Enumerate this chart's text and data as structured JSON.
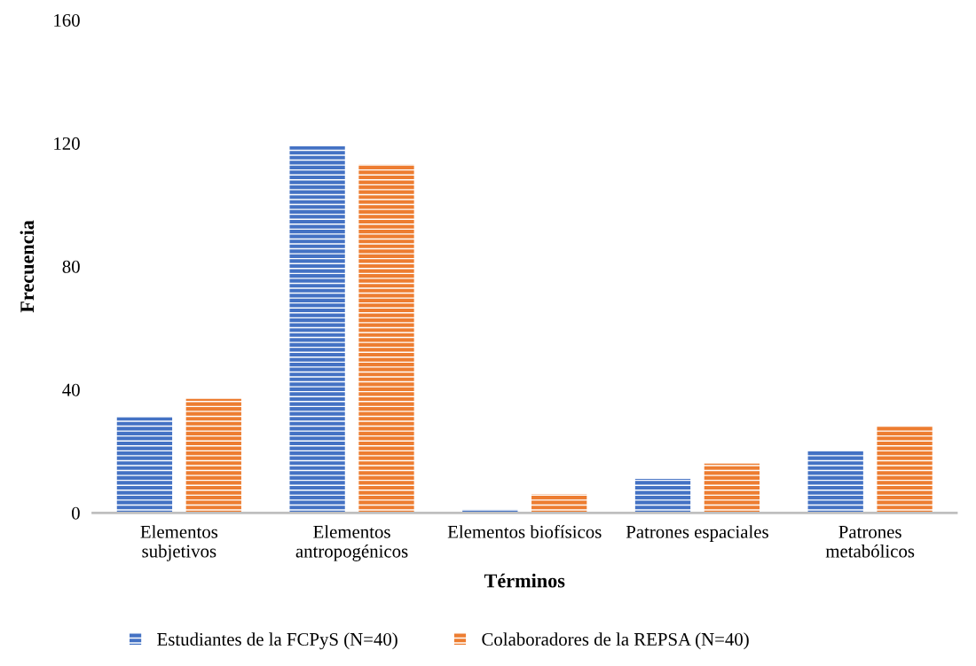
{
  "chart_data": {
    "type": "bar",
    "xlabel": "Términos",
    "ylabel": "Frecuencia",
    "categories": [
      "Elementos\nsubjetivos",
      "Elementos\nantropogénicos",
      "Elementos biofísicos",
      "Patrones espaciales",
      "Patrones\nmetabólicos"
    ],
    "series": [
      {
        "name": "Estudiantes de la FCPyS (N=40)",
        "color": "#4472c4",
        "values": [
          31,
          119,
          1,
          11,
          20
        ]
      },
      {
        "name": "Colaboradores de la REPSA (N=40)",
        "color": "#ed7d31",
        "values": [
          37,
          113,
          6,
          16,
          28
        ]
      }
    ],
    "ylim": [
      0,
      160
    ],
    "yticks": [
      0,
      40,
      80,
      120,
      160
    ],
    "grid": false,
    "legend": "bottom"
  }
}
